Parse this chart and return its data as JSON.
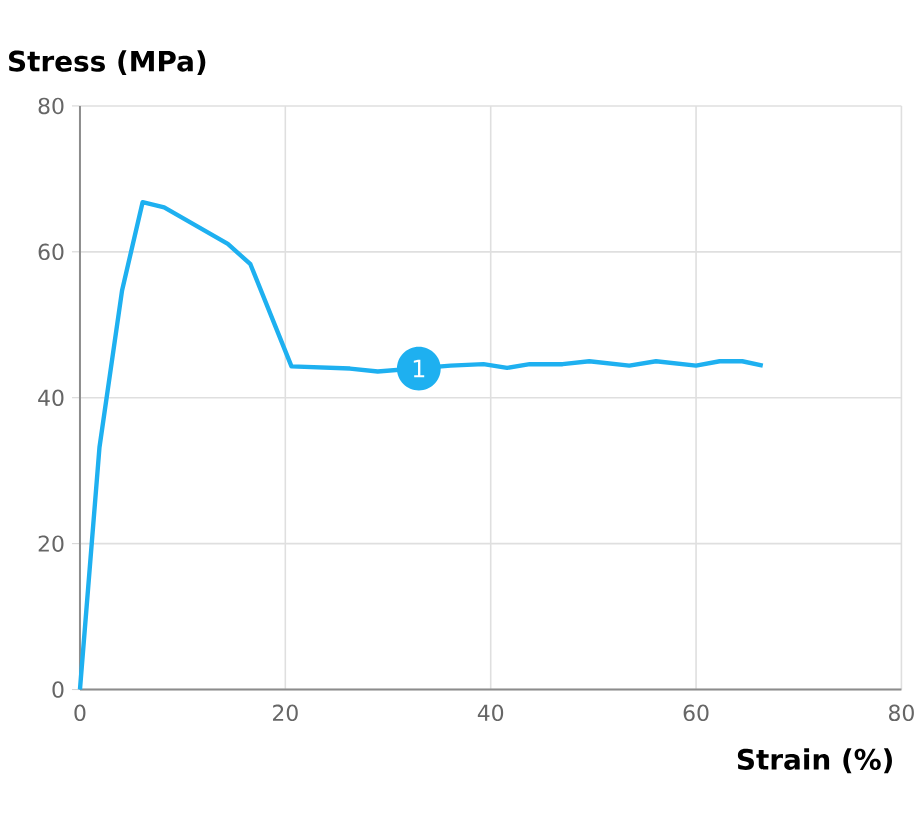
{
  "chart_data": {
    "type": "line",
    "xlabel": "Strain (%)",
    "ylabel": "Stress (MPa)",
    "xlim": [
      0,
      80
    ],
    "ylim": [
      0,
      80
    ],
    "xticks": [
      0,
      20,
      40,
      60,
      80
    ],
    "yticks": [
      0,
      20,
      40,
      60,
      80
    ],
    "grid": true,
    "marker": "none",
    "line_style": "solid",
    "series": [
      {
        "color": "#1eb0f0",
        "x": [
          0,
          1.9,
          4.1,
          6.1,
          8.2,
          14.4,
          16.6,
          20.6,
          26.3,
          29,
          36.1,
          39.3,
          41.6,
          43.8,
          47,
          49.6,
          53.5,
          56.1,
          60,
          62.3,
          64.5,
          66.5
        ],
        "values": [
          0,
          33.2,
          54.7,
          66.8,
          66.1,
          61.1,
          58.3,
          44.3,
          44,
          43.6,
          44.4,
          44.6,
          44.1,
          44.6,
          44.6,
          45,
          44.4,
          45,
          44.4,
          45,
          45,
          44.4
        ]
      }
    ],
    "annotations": [
      {
        "text": "1",
        "x": 33,
        "y": 44
      }
    ]
  }
}
